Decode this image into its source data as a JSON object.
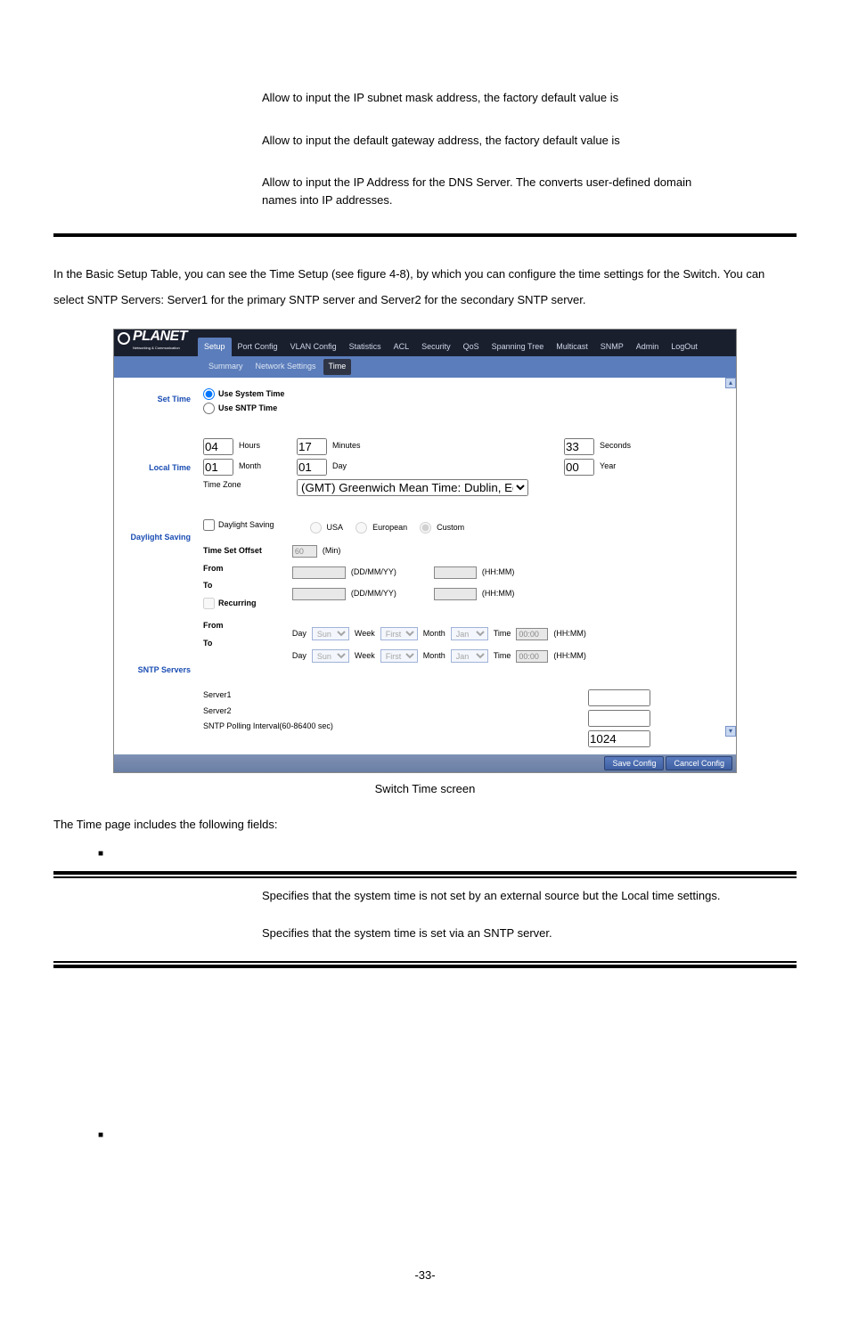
{
  "topText": {
    "p1": "Allow to input the IP subnet mask address, the factory default value is",
    "p2": "Allow to input the default gateway address, the factory default value is",
    "p3": "Allow to input the IP Address for the DNS Server. The converts user-defined domain names into IP addresses."
  },
  "introText": "In the Basic Setup Table, you can see the Time Setup (see figure 4-8), by which you can configure the time settings for the Switch. You can select SNTP Servers: Server1 for the primary SNTP server and Server2 for the secondary SNTP server.",
  "screenshot": {
    "brand": "PLANET",
    "brandSub": "Networking & Communication",
    "nav": [
      "Setup",
      "Port Config",
      "VLAN Config",
      "Statistics",
      "ACL",
      "Security",
      "QoS",
      "Spanning Tree",
      "Multicast",
      "SNMP",
      "Admin",
      "LogOut"
    ],
    "navActive": 0,
    "subnav": [
      "Summary",
      "Network Settings",
      "Time"
    ],
    "subnavActive": 2,
    "sections": {
      "setTime": "Set Time",
      "localTime": "Local Time",
      "daylight": "Daylight Saving",
      "sntp": "SNTP Servers"
    },
    "setTime": {
      "opt1": "Use System Time",
      "opt2": "Use SNTP Time",
      "selected": 0
    },
    "localTime": {
      "hours": "04",
      "hoursLbl": "Hours",
      "minutes": "17",
      "minutesLbl": "Minutes",
      "seconds": "33",
      "secondsLbl": "Seconds",
      "month": "01",
      "monthLbl": "Month",
      "day": "01",
      "dayLbl": "Day",
      "year": "00",
      "yearLbl": "Year",
      "tzLbl": "Time Zone",
      "tz": "(GMT) Greenwich Mean Time: Dublin, Edinburgh, Lisbon, London"
    },
    "ds": {
      "cbLbl": "Daylight Saving",
      "usa": "USA",
      "euro": "European",
      "custom": "Custom",
      "modeSelected": 2,
      "offsetLbl": "Time Set Offset",
      "offsetVal": "60",
      "offsetUnit": "(Min)",
      "fromLbl": "From",
      "toLbl": "To",
      "ddmmyy": "(DD/MM/YY)",
      "hhmm": "(HH:MM)",
      "recurringLbl": "Recurring",
      "dayLbl": "Day",
      "dayVal": "Sun",
      "weekLbl": "Week",
      "weekVal": "First",
      "monthLbl": "Month",
      "monthVal": "Jan",
      "timeLbl": "Time",
      "timeVal": "00:00"
    },
    "sntp": {
      "server1Lbl": "Server1",
      "server1Val": "",
      "server2Lbl": "Server2",
      "server2Val": "",
      "pollLbl": "SNTP Polling Interval(60-86400 sec)",
      "pollVal": "1024"
    },
    "buttons": {
      "save": "Save Config",
      "cancel": "Cancel Config"
    }
  },
  "figCaption": "Switch Time screen",
  "fieldsIntro": "The Time page includes the following fields:",
  "bullet": "■",
  "fieldDesc": {
    "p1": "Specifies that the system time is not set by an external source but the Local time settings.",
    "p2": "Specifies that the system time is set via an SNTP server."
  },
  "pageNum": "-33-"
}
